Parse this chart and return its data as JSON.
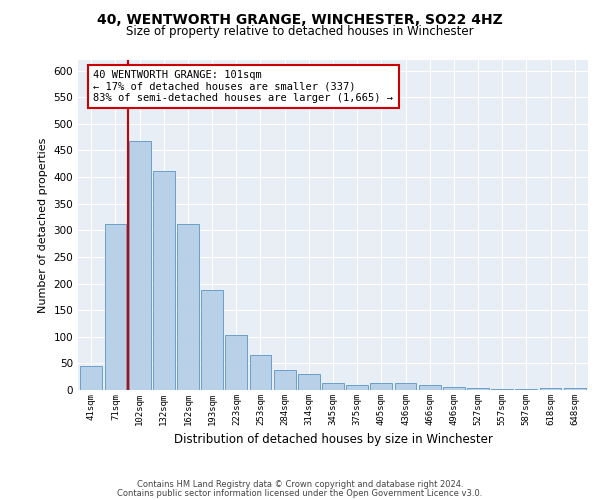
{
  "title1": "40, WENTWORTH GRANGE, WINCHESTER, SO22 4HZ",
  "title2": "Size of property relative to detached houses in Winchester",
  "xlabel": "Distribution of detached houses by size in Winchester",
  "ylabel": "Number of detached properties",
  "categories": [
    "41sqm",
    "71sqm",
    "102sqm",
    "132sqm",
    "162sqm",
    "193sqm",
    "223sqm",
    "253sqm",
    "284sqm",
    "314sqm",
    "345sqm",
    "375sqm",
    "405sqm",
    "436sqm",
    "466sqm",
    "496sqm",
    "527sqm",
    "557sqm",
    "587sqm",
    "618sqm",
    "648sqm"
  ],
  "values": [
    45,
    312,
    467,
    412,
    312,
    187,
    104,
    65,
    37,
    30,
    13,
    10,
    13,
    13,
    10,
    6,
    4,
    2,
    1,
    3,
    4
  ],
  "bar_color": "#b8d0e8",
  "bar_edge_color": "#6aa0c8",
  "red_line_x": 1.5,
  "red_line_color": "#cc0000",
  "annotation_text": "40 WENTWORTH GRANGE: 101sqm\n← 17% of detached houses are smaller (337)\n83% of semi-detached houses are larger (1,665) →",
  "annotation_box_color": "#ffffff",
  "annotation_box_edge": "#cc0000",
  "ylim": [
    0,
    620
  ],
  "yticks": [
    0,
    50,
    100,
    150,
    200,
    250,
    300,
    350,
    400,
    450,
    500,
    550,
    600
  ],
  "background_color": "#e8eef5",
  "grid_color": "#ffffff",
  "footer1": "Contains HM Land Registry data © Crown copyright and database right 2024.",
  "footer2": "Contains public sector information licensed under the Open Government Licence v3.0."
}
